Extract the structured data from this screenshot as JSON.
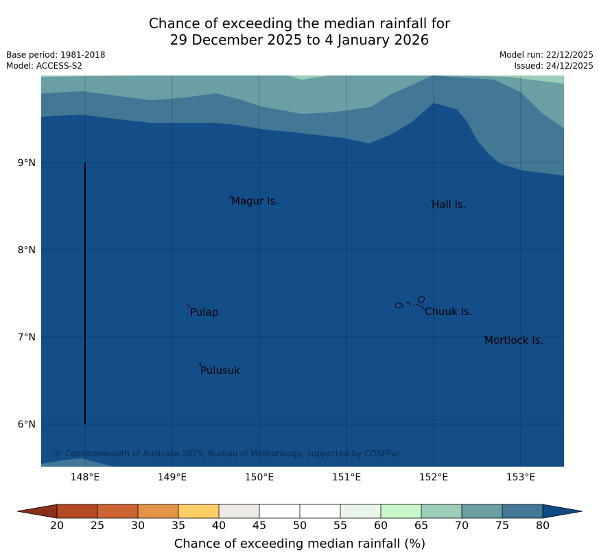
{
  "title": {
    "line1": "Chance of exceeding the median rainfall for",
    "line2": "29 December 2025 to 4 January 2026"
  },
  "meta": {
    "base_period": "Base period: 1981-2018",
    "model": "Model: ACCESS-S2",
    "model_run": "Model run: 22/12/2025",
    "issued": "Issued: 24/12/2025"
  },
  "map": {
    "lon_ticks": [
      "148°E",
      "149°E",
      "150°E",
      "151°E",
      "152°E",
      "153°E"
    ],
    "lat_ticks": [
      "9°N",
      "8°N",
      "7°N",
      "6°N"
    ],
    "places": [
      "Magur Is.",
      "Hall Is.",
      "Pulap",
      "Chuuk Is.",
      "Mortlock Is.",
      "Pulusuk"
    ],
    "copyright": "© Commonwealth of Australia 2025, Bureau of Meteorology, supported by COSPPac",
    "colors": {
      "band_80_plus": "#134e88",
      "band_75_80": "#427896",
      "band_70_75": "#6aa0a4",
      "band_65_70": "#9ccdb8"
    }
  },
  "colorbar": {
    "ticks": [
      "20",
      "25",
      "30",
      "35",
      "40",
      "45",
      "50",
      "55",
      "60",
      "65",
      "70",
      "75",
      "80"
    ],
    "label": "Chance of exceeding median rainfall (%)",
    "under_color": "#8b3018",
    "over_color": "#104a85",
    "colors": [
      "#b34a24",
      "#cc6433",
      "#e39448",
      "#fdcd66",
      "#edeae5",
      "#ffffff",
      "#ffffff",
      "#eaf6ea",
      "#c9f7c9",
      "#9ccdb8",
      "#6aa0a4",
      "#427896"
    ]
  }
}
